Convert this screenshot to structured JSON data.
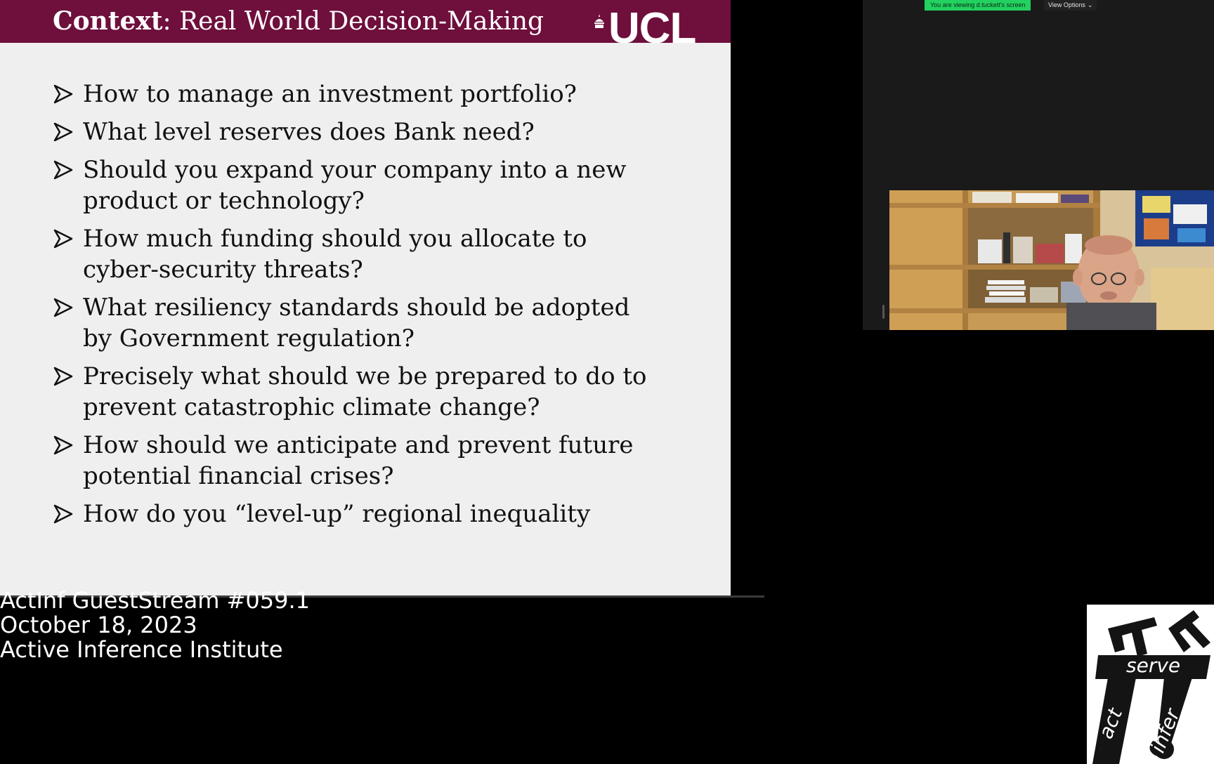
{
  "slide": {
    "title_strong": "Context",
    "title_rest": ": Real World Decision-Making",
    "logo_text": "UCL",
    "bullets": [
      {
        "lines": [
          "How to manage an investment portfolio?"
        ]
      },
      {
        "lines": [
          "What level reserves does Bank need?"
        ]
      },
      {
        "lines": [
          "Should you expand your company into a new",
          "product or technology?"
        ]
      },
      {
        "lines": [
          "How much funding should you allocate to",
          "cyber-security threats?"
        ]
      },
      {
        "lines": [
          "What resiliency standards should be adopted",
          "by Government regulation?"
        ]
      },
      {
        "lines": [
          "Precisely what should we be prepared to do to",
          "prevent catastrophic climate change?"
        ]
      },
      {
        "lines": [
          "How should we anticipate and prevent future",
          "potential financial crises?"
        ]
      },
      {
        "lines": [
          "How do you “level-up” regional inequality"
        ]
      }
    ]
  },
  "zoom": {
    "viewing_banner": "You are viewing d.tuckett's screen",
    "view_options_label": "View Options",
    "view_options_icon": "chevron-down-icon"
  },
  "caption": {
    "line1": "ActInf GuestStream #059.1",
    "line2": "October 18, 2023",
    "line3": "Active Inference Institute"
  },
  "institute_logo": {
    "word_top": "serve",
    "word_left": "act",
    "word_right": "infer"
  },
  "colors": {
    "slide_header": "#6e0f3c",
    "slide_bg": "#efefef",
    "banner_green": "#23d160",
    "panel_bg": "#1a1a1a"
  }
}
